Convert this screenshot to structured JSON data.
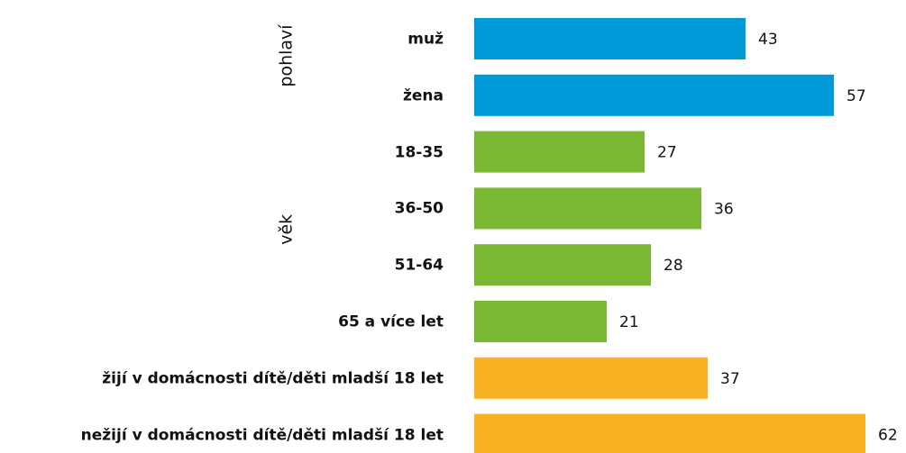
{
  "chart_data": {
    "type": "bar",
    "series": [
      {
        "name": "pohlaví",
        "color": "#009ad8",
        "categories": [
          "muž",
          "žena"
        ],
        "values": [
          43,
          57
        ]
      },
      {
        "name": "věk",
        "color": "#7ab733",
        "categories": [
          "18-35",
          "36-50",
          "51-64",
          "65 a více let"
        ],
        "values": [
          27,
          36,
          28,
          21
        ]
      },
      {
        "color": "#f8b123",
        "categories": [
          "žijí v domácnosti dítě/děti mladší 18 let",
          "nežijí v domácnosti dítě/děti mladší 18 let"
        ],
        "values": [
          37,
          62
        ]
      }
    ]
  }
}
